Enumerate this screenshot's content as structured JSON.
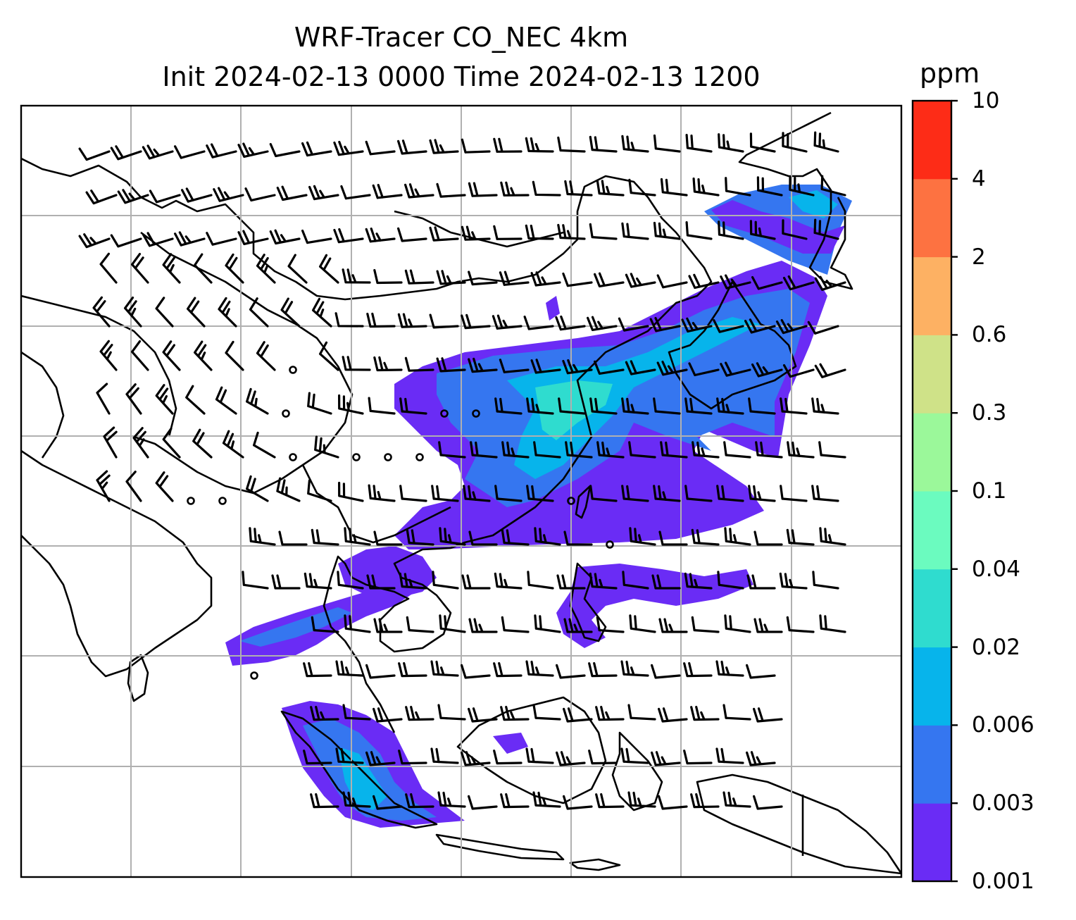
{
  "title": {
    "line1": "WRF-Tracer CO_NEC 4km",
    "line2": "Init 2024-02-13 0000 Time 2024-02-13 1200"
  },
  "colorbar": {
    "unit": "ppm",
    "levels": [
      "0.001",
      "0.003",
      "0.006",
      "0.02",
      "0.04",
      "0.1",
      "0.3",
      "0.6",
      "2",
      "4",
      "10"
    ],
    "colors": [
      "#6a2cf5",
      "#3576f0",
      "#07b4eb",
      "#2fdccf",
      "#6bfbbf",
      "#9bf89a",
      "#cfe288",
      "#fdb163",
      "#fd7241",
      "#fd2c17"
    ]
  },
  "map": {
    "frame": "black",
    "gridlines": "gray",
    "plume_colors": {
      "light": "#6a2cf5",
      "medium": "#3576f0",
      "strong": "#07b4eb",
      "peak": "#2fdccf"
    }
  }
}
